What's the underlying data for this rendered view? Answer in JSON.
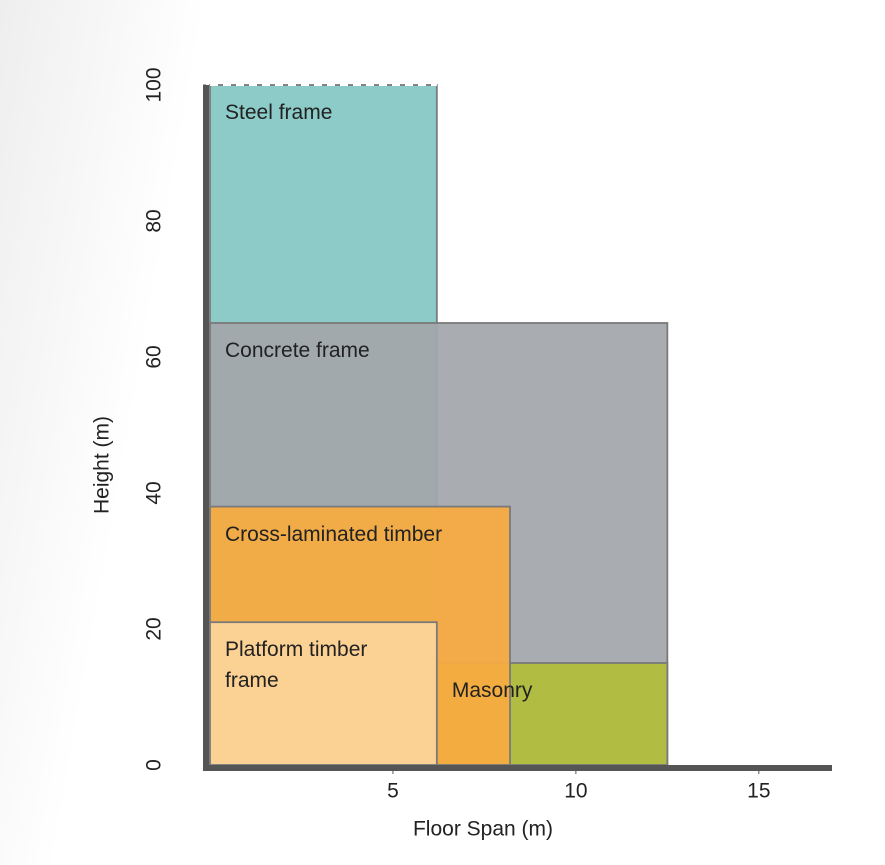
{
  "chart_data": {
    "type": "range-rect",
    "xlabel": "Floor Span (m)",
    "ylabel": "Height (m)",
    "xlim": [
      0,
      17
    ],
    "xticks": [
      5,
      10,
      15
    ],
    "ylim": [
      0,
      100
    ],
    "yticks": [
      0,
      20,
      40,
      60,
      80,
      100
    ],
    "series": [
      {
        "name": "Steel frame",
        "color": "#8ccbc8",
        "x": [
          0,
          6.2
        ],
        "y": [
          0,
          100
        ]
      },
      {
        "name": "Concrete frame",
        "color": "#a3a6ab",
        "x": [
          0,
          12.5
        ],
        "y": [
          0,
          65
        ]
      },
      {
        "name": "Masonry",
        "color": "#b1bd39",
        "x": [
          6.2,
          12.5
        ],
        "y": [
          0,
          15
        ]
      },
      {
        "name": "Cross-laminated timber",
        "color": "#f8ab3f",
        "x": [
          0,
          8.2
        ],
        "y": [
          0,
          38
        ]
      },
      {
        "name": "Platform timber frame",
        "color": "#fdd49a",
        "x": [
          0,
          6.2
        ],
        "y": [
          0,
          21
        ]
      }
    ]
  }
}
